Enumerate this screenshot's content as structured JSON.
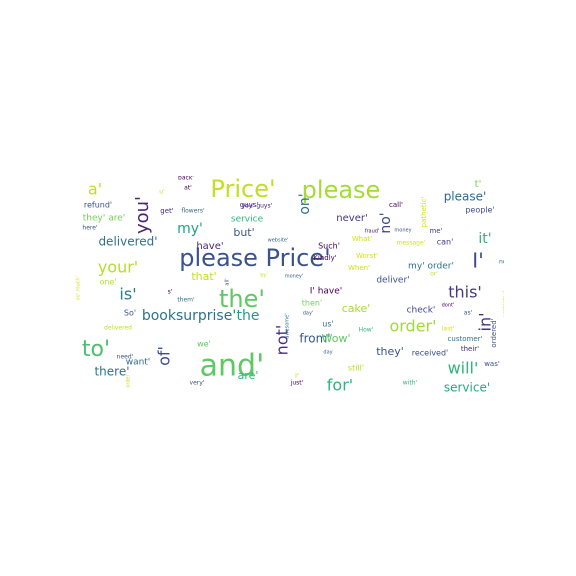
{
  "chart_data": {
    "type": "wordcloud",
    "background": "#ffffff",
    "colormap": "viridis",
    "words": [
      {
        "text": "please Price'",
        "weight": 0.95,
        "color": "#3b528b"
      },
      {
        "text": "Price'",
        "weight": 0.9,
        "color": "#c2df23"
      },
      {
        "text": "please",
        "weight": 0.85,
        "color": "#a5db36"
      },
      {
        "text": "the'",
        "weight": 0.85,
        "color": "#5ec962"
      },
      {
        "text": "and'",
        "weight": 0.85,
        "color": "#5ec962"
      },
      {
        "text": "I'",
        "weight": 0.7,
        "color": "#3e4a89"
      },
      {
        "text": "your'",
        "weight": 0.62,
        "color": "#b5de2b"
      },
      {
        "text": "to'",
        "weight": 0.62,
        "color": "#4ac16d"
      },
      {
        "text": "order'",
        "weight": 0.6,
        "color": "#a2da37"
      },
      {
        "text": "this'",
        "weight": 0.58,
        "color": "#443983"
      },
      {
        "text": "booksurprise'",
        "weight": 0.55,
        "color": "#2c728e"
      },
      {
        "text": "the",
        "weight": 0.55,
        "color": "#1e9c89"
      },
      {
        "text": "a'",
        "weight": 0.55,
        "color": "#c2df23"
      },
      {
        "text": "you'",
        "weight": 0.5,
        "color": "#482677"
      },
      {
        "text": "will'",
        "weight": 0.52,
        "color": "#2fb47c"
      },
      {
        "text": "my'",
        "weight": 0.48,
        "color": "#1fa187"
      },
      {
        "text": "is'",
        "weight": 0.5,
        "color": "#287d8e"
      },
      {
        "text": "delivered'",
        "weight": 0.45,
        "color": "#2c728e"
      },
      {
        "text": "it'",
        "weight": 0.45,
        "color": "#2fb47c"
      },
      {
        "text": "of'",
        "weight": 0.45,
        "color": "#3e4a89"
      },
      {
        "text": "not'",
        "weight": 0.45,
        "color": "#472d7b"
      },
      {
        "text": "for'",
        "weight": 0.45,
        "color": "#2fb47c"
      },
      {
        "text": "in'",
        "weight": 0.45,
        "color": "#46337e"
      },
      {
        "text": "on'",
        "weight": 0.45,
        "color": "#2c728e"
      },
      {
        "text": "no'",
        "weight": 0.4,
        "color": "#414487"
      },
      {
        "text": "please'",
        "weight": 0.35,
        "color": "#31688e"
      },
      {
        "text": "from'",
        "weight": 0.38,
        "color": "#38588c"
      },
      {
        "text": "service'",
        "weight": 0.35,
        "color": "#22a884"
      },
      {
        "text": "there'",
        "weight": 0.35,
        "color": "#2c728e"
      },
      {
        "text": "are'",
        "weight": 0.3,
        "color": "#35b779"
      },
      {
        "text": "t'",
        "weight": 0.3,
        "color": "#7ad151"
      },
      {
        "text": "they'",
        "weight": 0.28,
        "color": "#3b528b"
      },
      {
        "text": "cake'",
        "weight": 0.25,
        "color": "#a5db36"
      },
      {
        "text": "Wow'",
        "weight": 0.25,
        "color": "#5ec962"
      },
      {
        "text": "but'",
        "weight": 0.25,
        "color": "#38588c"
      },
      {
        "text": "that'",
        "weight": 0.25,
        "color": "#c2df23"
      },
      {
        "text": "have'",
        "weight": 0.22,
        "color": "#482878"
      },
      {
        "text": "my' order'",
        "weight": 0.22,
        "color": "#2c728e"
      },
      {
        "text": "never'",
        "weight": 0.2,
        "color": "#46327e"
      },
      {
        "text": "service",
        "weight": 0.2,
        "color": "#2fb47c"
      },
      {
        "text": "deliver'",
        "weight": 0.2,
        "color": "#3b528b"
      },
      {
        "text": "check'",
        "weight": 0.2,
        "color": "#404688"
      },
      {
        "text": "want'",
        "weight": 0.2,
        "color": "#31688e"
      },
      {
        "text": "I' have'",
        "weight": 0.18,
        "color": "#440154"
      },
      {
        "text": "people'",
        "weight": 0.18,
        "color": "#3e4a89"
      },
      {
        "text": "received'",
        "weight": 0.18,
        "color": "#3e4a89"
      },
      {
        "text": "still'",
        "weight": 0.18,
        "color": "#b5de2b"
      },
      {
        "text": "refund'",
        "weight": 0.17,
        "color": "#3b528b"
      },
      {
        "text": "they' are'",
        "weight": 0.17,
        "color": "#73d056"
      },
      {
        "text": "we'",
        "weight": 0.17,
        "color": "#5ec962"
      },
      {
        "text": "one'",
        "weight": 0.15,
        "color": "#b5de2b"
      },
      {
        "text": "So'",
        "weight": 0.15,
        "color": "#3b528b"
      },
      {
        "text": "can'",
        "weight": 0.15,
        "color": "#453781"
      },
      {
        "text": "then'",
        "weight": 0.15,
        "color": "#7ad151"
      },
      {
        "text": "us'",
        "weight": 0.15,
        "color": "#31688e"
      },
      {
        "text": "Such'",
        "weight": 0.15,
        "color": "#440154"
      },
      {
        "text": "guys'",
        "weight": 0.15,
        "color": "#482677"
      },
      {
        "text": "Kindly'",
        "weight": 0.14,
        "color": "#440154"
      },
      {
        "text": "me'",
        "weight": 0.14,
        "color": "#433e85"
      },
      {
        "text": "call'",
        "weight": 0.14,
        "color": "#440154"
      },
      {
        "text": "get'",
        "weight": 0.14,
        "color": "#482475"
      },
      {
        "text": "When'",
        "weight": 0.13,
        "color": "#d2e21b"
      },
      {
        "text": "What'",
        "weight": 0.13,
        "color": "#d2e21b"
      },
      {
        "text": "Worst'",
        "weight": 0.13,
        "color": "#d2e21b"
      },
      {
        "text": "customer'",
        "weight": 0.13,
        "color": "#2a788e"
      },
      {
        "text": "their'",
        "weight": 0.13,
        "color": "#482878"
      },
      {
        "text": "was'",
        "weight": 0.13,
        "color": "#3e4a89"
      },
      {
        "text": "ordered'",
        "weight": 0.13,
        "color": "#3b528b"
      },
      {
        "text": "How'",
        "weight": 0.12,
        "color": "#2fb47c"
      },
      {
        "text": "message'",
        "weight": 0.12,
        "color": "#d2e21b"
      },
      {
        "text": "pathetic'",
        "weight": 0.12,
        "color": "#d2e21b"
      },
      {
        "text": "need'",
        "weight": 0.11,
        "color": "#3b528b"
      },
      {
        "text": "here'",
        "weight": 0.11,
        "color": "#3b528b"
      },
      {
        "text": "back'",
        "weight": 0.11,
        "color": "#440154"
      },
      {
        "text": "at'",
        "weight": 0.11,
        "color": "#440154"
      },
      {
        "text": "flowers'",
        "weight": 0.11,
        "color": "#31688e"
      },
      {
        "text": "you' guys'",
        "weight": 0.11,
        "color": "#482677"
      },
      {
        "text": "website'",
        "weight": 0.1,
        "color": "#31688e"
      },
      {
        "text": "them'",
        "weight": 0.1,
        "color": "#2c728e"
      },
      {
        "text": "s'",
        "weight": 0.1,
        "color": "#440154"
      },
      {
        "text": "all'",
        "weight": 0.1,
        "color": "#3b528b"
      },
      {
        "text": "by'",
        "weight": 0.1,
        "color": "#c2df23"
      },
      {
        "text": "money'",
        "weight": 0.1,
        "color": "#31688e"
      },
      {
        "text": "fraud'",
        "weight": 0.1,
        "color": "#440154"
      },
      {
        "text": "money",
        "weight": 0.1,
        "color": "#3b528b"
      },
      {
        "text": "dont'",
        "weight": 0.1,
        "color": "#440154"
      },
      {
        "text": "or'",
        "weight": 0.1,
        "color": "#c2df23"
      },
      {
        "text": "as'",
        "weight": 0.1,
        "color": "#3b528b"
      },
      {
        "text": "last'",
        "weight": 0.1,
        "color": "#d2e21b"
      },
      {
        "text": "day'",
        "weight": 0.1,
        "color": "#3b528b"
      },
      {
        "text": "day",
        "weight": 0.1,
        "color": "#31688e"
      },
      {
        "text": "awesome'",
        "weight": 0.1,
        "color": "#2c728e"
      },
      {
        "text": "very'",
        "weight": 0.1,
        "color": "#3b528b"
      },
      {
        "text": "just'",
        "weight": 0.1,
        "color": "#440154"
      },
      {
        "text": "if'",
        "weight": 0.1,
        "color": "#d2e21b"
      },
      {
        "text": "with'",
        "weight": 0.1,
        "color": "#2fb47c"
      },
      {
        "text": "now'",
        "weight": 0.1,
        "color": "#31688e"
      },
      {
        "text": "really'",
        "weight": 0.1,
        "color": "#3b528b"
      },
      {
        "text": "yesterday'",
        "weight": 0.1,
        "color": "#c2df23"
      },
      {
        "text": "so' much'",
        "weight": 0.1,
        "color": "#d2e21b"
      },
      {
        "text": "delivered",
        "weight": 0.1,
        "color": "#c2df23"
      },
      {
        "text": "order",
        "weight": 0.1,
        "color": "#c2df23"
      },
      {
        "text": "u'",
        "weight": 0.1,
        "color": "#d2e21b"
      }
    ]
  }
}
